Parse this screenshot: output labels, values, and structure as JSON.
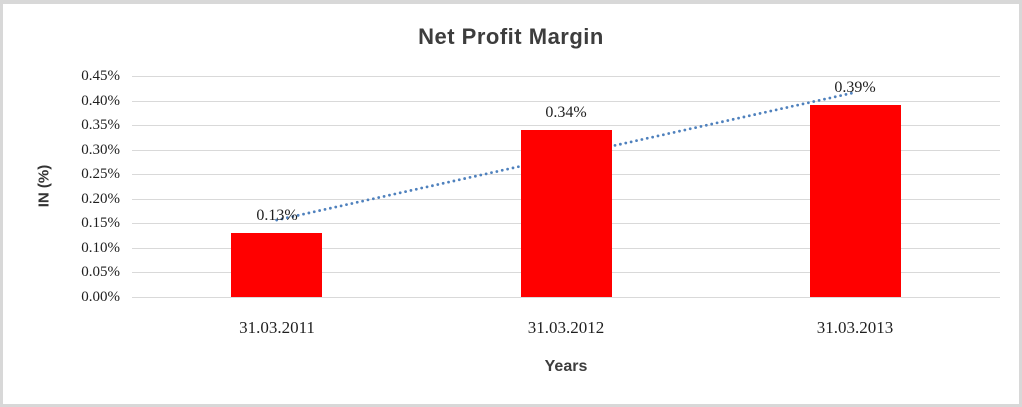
{
  "chart_data": {
    "type": "bar",
    "title": "Net Profit Margin",
    "categories": [
      "31.03.2011",
      "31.03.2012",
      "31.03.2013"
    ],
    "values": [
      0.13,
      0.34,
      0.39
    ],
    "data_labels": [
      "0.13%",
      "0.34%",
      "0.39%"
    ],
    "xlabel": "Years",
    "ylabel": "IN (%)",
    "ylim": [
      0,
      0.45
    ],
    "ytick_labels": [
      "0.00%",
      "0.05%",
      "0.10%",
      "0.15%",
      "0.20%",
      "0.25%",
      "0.30%",
      "0.35%",
      "0.40%",
      "0.45%"
    ],
    "grid": true,
    "legend": "none",
    "bar_color": "#FF0000",
    "grid_color": "#d9d9d9",
    "trendline": {
      "type": "linear",
      "style": "round-dot",
      "color": "#4F81BD"
    }
  }
}
